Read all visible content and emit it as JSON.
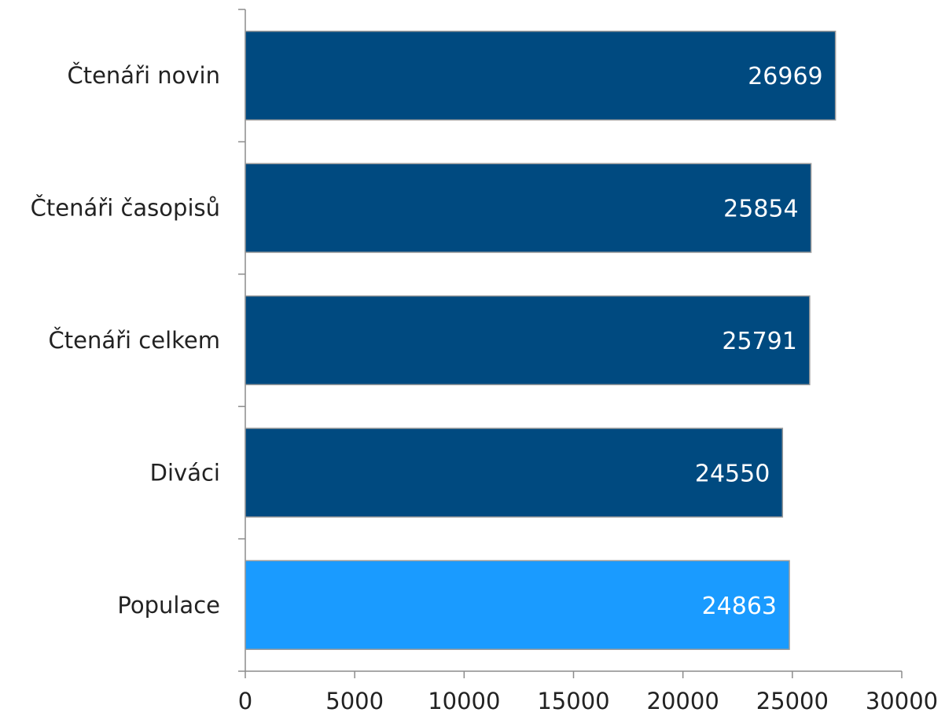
{
  "chart_data": {
    "type": "bar",
    "orientation": "horizontal",
    "title": "",
    "xlabel": "",
    "ylabel": "",
    "categories": [
      "Čtenáři novin",
      "Čtenáři časopisů",
      "Čtenáři celkem",
      "Diváci",
      "Populace"
    ],
    "values": [
      26969,
      25854,
      25791,
      24550,
      24863
    ],
    "bar_colors": [
      "#004a80",
      "#004a80",
      "#004a80",
      "#004a80",
      "#1a9bff"
    ],
    "xlim": [
      0,
      30000
    ],
    "xticks": [
      0,
      5000,
      10000,
      15000,
      20000,
      25000,
      30000
    ],
    "xtick_labels": [
      "0",
      "5000",
      "10000",
      "15000",
      "20000",
      "25000",
      "30000"
    ],
    "data_labels": [
      "26969",
      "25854",
      "25791",
      "24550",
      "24863"
    ],
    "grid": false,
    "legend": "none"
  }
}
